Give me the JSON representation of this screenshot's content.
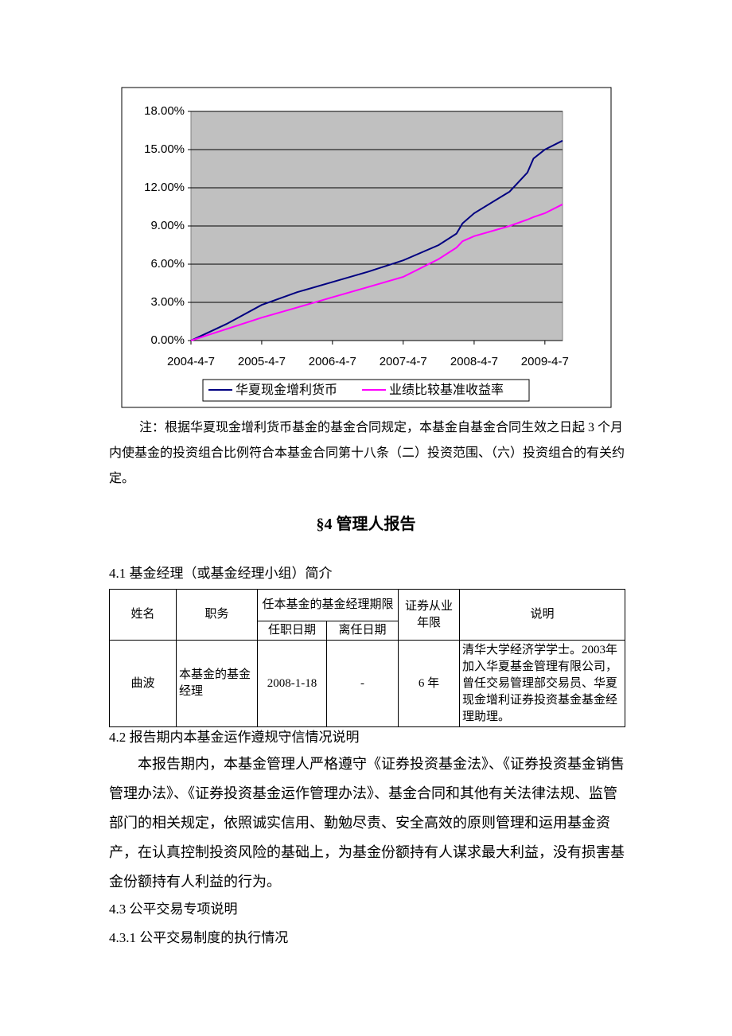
{
  "chart_data": {
    "type": "line",
    "x": [
      "2004-4-7",
      "2004-10-7",
      "2005-4-7",
      "2005-10-7",
      "2006-4-7",
      "2006-10-7",
      "2007-4-7",
      "2007-10-7",
      "2008-1-7",
      "2008-2-7",
      "2008-4-7",
      "2008-10-7",
      "2009-1-7",
      "2009-2-7",
      "2009-4-7",
      "2009-7-7"
    ],
    "series": [
      {
        "name": "华夏现金增利货币",
        "color": "#000080",
        "values": [
          0,
          1.3,
          2.8,
          3.8,
          4.6,
          5.4,
          6.3,
          7.5,
          8.4,
          9.2,
          10.0,
          11.7,
          13.2,
          14.3,
          15.0,
          15.7
        ]
      },
      {
        "name": "业绩比较基准收益率",
        "color": "#ff00ff",
        "values": [
          0,
          0.9,
          1.8,
          2.6,
          3.4,
          4.2,
          5.0,
          6.4,
          7.3,
          7.8,
          8.2,
          9.0,
          9.5,
          9.7,
          10.0,
          10.7
        ]
      }
    ],
    "xlim": [
      "2004-4-7",
      "2009-7-7"
    ],
    "xticks": [
      "2004-4-7",
      "2005-4-7",
      "2006-4-7",
      "2007-4-7",
      "2008-4-7",
      "2009-4-7"
    ],
    "ylim": [
      0,
      18
    ],
    "yticks": [
      {
        "value": 0,
        "label": "0.00%"
      },
      {
        "value": 3,
        "label": "3.00%"
      },
      {
        "value": 6,
        "label": "6.00%"
      },
      {
        "value": 9,
        "label": "9.00%"
      },
      {
        "value": 12,
        "label": "12.00%"
      },
      {
        "value": 15,
        "label": "15.00%"
      },
      {
        "value": 18,
        "label": "18.00%"
      }
    ],
    "grid": true,
    "legend": "bottom",
    "plot_background": "#c0c0c0"
  },
  "note": "注：根据华夏现金增利货币基金的基金合同规定，本基金自基金合同生效之日起 3 个月内使基金的投资组合比例符合本基金合同第十八条（二）投资范围、（六）投资组合的有关约定。",
  "section": {
    "title": "§4 管理人报告"
  },
  "s4_1": {
    "title": "4.1 基金经理（或基金经理小组）简介"
  },
  "table": {
    "header": [
      "姓名",
      "职务",
      "任本基金的基金经理期限",
      "证券从业年限",
      "说明"
    ],
    "subheader": [
      "任职日期",
      "离任日期"
    ],
    "rows": [
      [
        "曲波",
        "本基金的基金经理",
        "2008-1-18",
        "-",
        "6 年",
        "清华大学经济学学士。2003年加入华夏基金管理有限公司，曾任交易管理部交易员、华夏现金增利证券投资基金基金经理助理。"
      ]
    ]
  },
  "s4_2": {
    "title": "4.2 报告期内本基金运作遵规守信情况说明",
    "body": "本报告期内，本基金管理人严格遵守《证券投资基金法》、《证券投资基金销售管理办法》、《证券投资基金运作管理办法》、基金合同和其他有关法律法规、监管部门的相关规定，依照诚实信用、勤勉尽责、安全高效的原则管理和运用基金资产，在认真控制投资风险的基础上，为基金份额持有人谋求最大利益，没有损害基金份额持有人利益的行为。"
  },
  "s4_3": {
    "title": "4.3 公平交易专项说明"
  },
  "s4_3_1": {
    "title": "4.3.1 公平交易制度的执行情况"
  }
}
